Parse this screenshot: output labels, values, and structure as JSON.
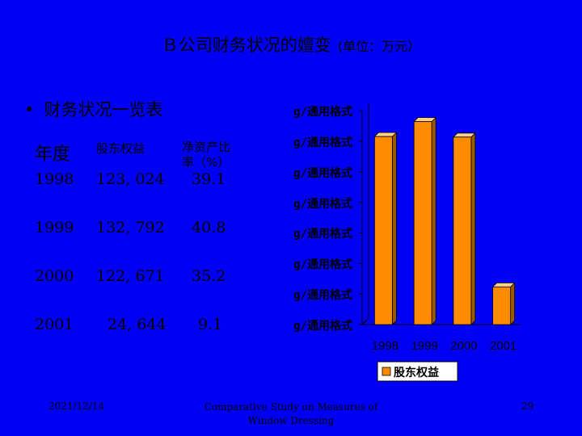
{
  "slide": {
    "title": "Ｂ公司财务状况的嬗变",
    "title_unit": "(单位：万元）",
    "bullet": "财务状况一览表",
    "bullet_symbol": "•"
  },
  "table": {
    "headers": {
      "year": "年度",
      "equity": "股东权益",
      "ratio_line1": "净资产比",
      "ratio_line2": "率（%）"
    },
    "rows": [
      {
        "year": "1998",
        "equity": "123, 024",
        "ratio": "39.1"
      },
      {
        "year": "1999",
        "equity": "132, 792",
        "ratio": "40.8"
      },
      {
        "year": "2000",
        "equity": "122, 671",
        "ratio": "35.2"
      },
      {
        "year": "2001",
        "equity": "24, 644",
        "ratio": "9.1"
      }
    ]
  },
  "chart_data": {
    "type": "bar",
    "categories": [
      "1998",
      "1999",
      "2000",
      "2001"
    ],
    "series": [
      {
        "name": "股东权益",
        "values": [
          123024,
          132792,
          122671,
          24644
        ]
      }
    ],
    "ylim": [
      0,
      140000
    ],
    "y_tick_labels": [
      "g/通用格式",
      "g/通用格式",
      "g/通用格式",
      "g/通用格式",
      "g/通用格式",
      "g/通用格式",
      "g/通用格式",
      "g/通用格式"
    ],
    "legend": "bottom",
    "bar_color": "#ff8c00"
  },
  "footer": {
    "date": "2021/12/14",
    "caption_line1": "Comparative Study on Measures of",
    "caption_line2": "Window Dressing",
    "page": "29"
  }
}
